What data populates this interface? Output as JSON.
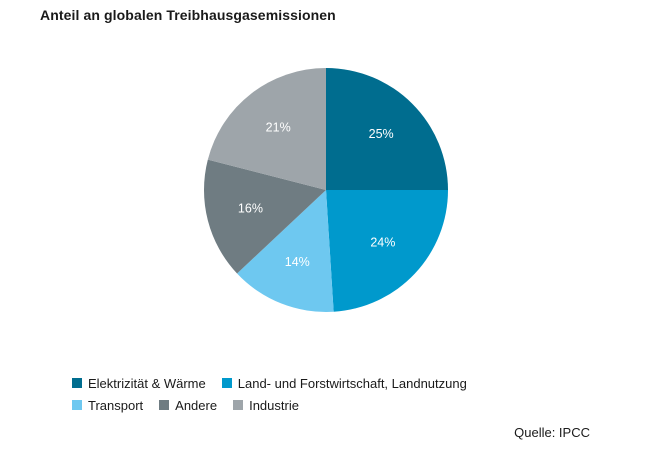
{
  "chart_data": {
    "type": "pie",
    "title": "Anteil an globalen Treibhausgasemissionen",
    "slices": [
      {
        "label": "Elektrizität & Wärme",
        "value": 25,
        "value_label": "25%",
        "color": "#006d8f"
      },
      {
        "label": "Land- und Forstwirtschaft, Landnutzung",
        "value": 24,
        "value_label": "24%",
        "color": "#0099cc"
      },
      {
        "label": "Transport",
        "value": 14,
        "value_label": "14%",
        "color": "#6ec8f0"
      },
      {
        "label": "Andere",
        "value": 16,
        "value_label": "16%",
        "color": "#6f7c82"
      },
      {
        "label": "Industrie",
        "value": 21,
        "value_label": "21%",
        "color": "#9ea5aa"
      }
    ],
    "source": "Quelle: IPCC",
    "legend_position": "bottom"
  }
}
